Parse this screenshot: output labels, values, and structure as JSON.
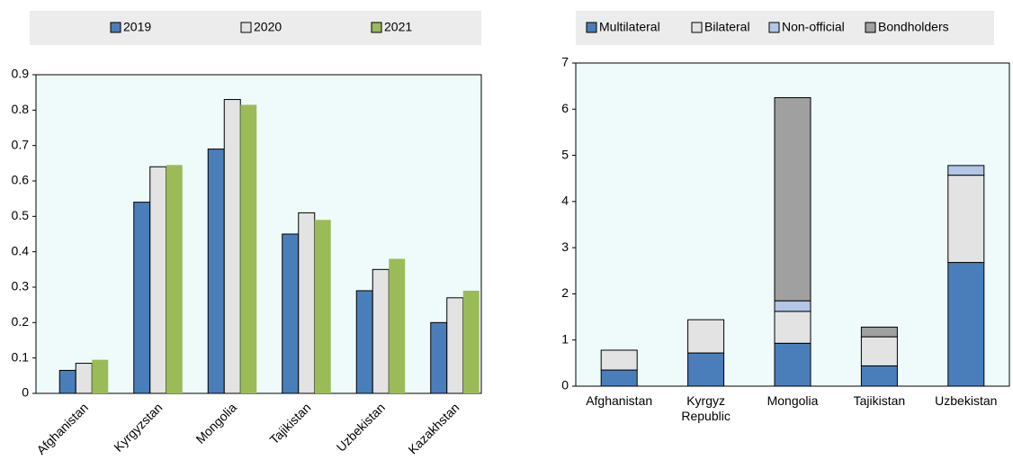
{
  "chart_data": [
    {
      "type": "bar",
      "categories": [
        "Afghanistan",
        "Kyrgyzstan",
        "Mongolia",
        "Tajikistan",
        "Uzbekistan",
        "Kazakhstan"
      ],
      "series": [
        {
          "name": "2019",
          "color": "#4a7ebb",
          "values": [
            0.065,
            0.54,
            0.69,
            0.45,
            0.29,
            0.2
          ]
        },
        {
          "name": "2020",
          "color": "#e3e3e3",
          "values": [
            0.085,
            0.64,
            0.83,
            0.51,
            0.35,
            0.27
          ]
        },
        {
          "name": "2021",
          "color": "#9bbb59",
          "values": [
            0.095,
            0.645,
            0.815,
            0.49,
            0.38,
            0.29
          ]
        }
      ],
      "ylim": [
        0,
        0.9
      ],
      "yticks": [
        0,
        0.1,
        0.2,
        0.3,
        0.4,
        0.5,
        0.6,
        0.7,
        0.8,
        0.9
      ]
    },
    {
      "type": "stacked_bar",
      "categories": [
        "Afghanistan",
        "Kyrgyz Republic",
        "Mongolia",
        "Tajikistan",
        "Uzbekistan"
      ],
      "series": [
        {
          "name": "Multilateral",
          "color": "#4a7ebb",
          "values": [
            0.35,
            0.72,
            0.93,
            0.44,
            2.68
          ]
        },
        {
          "name": "Bilateral",
          "color": "#e3e3e3",
          "values": [
            0.43,
            0.72,
            0.69,
            0.63,
            1.89
          ]
        },
        {
          "name": "Non-official",
          "color": "#b4c6e7",
          "values": [
            0,
            0,
            0.23,
            0,
            0.21
          ]
        },
        {
          "name": "Bondholders",
          "color": "#a0a0a0",
          "values": [
            0,
            0,
            4.4,
            0.21,
            0
          ]
        }
      ],
      "ylim": [
        0,
        7
      ],
      "yticks": [
        0,
        1,
        2,
        3,
        4,
        5,
        6,
        7
      ]
    }
  ]
}
